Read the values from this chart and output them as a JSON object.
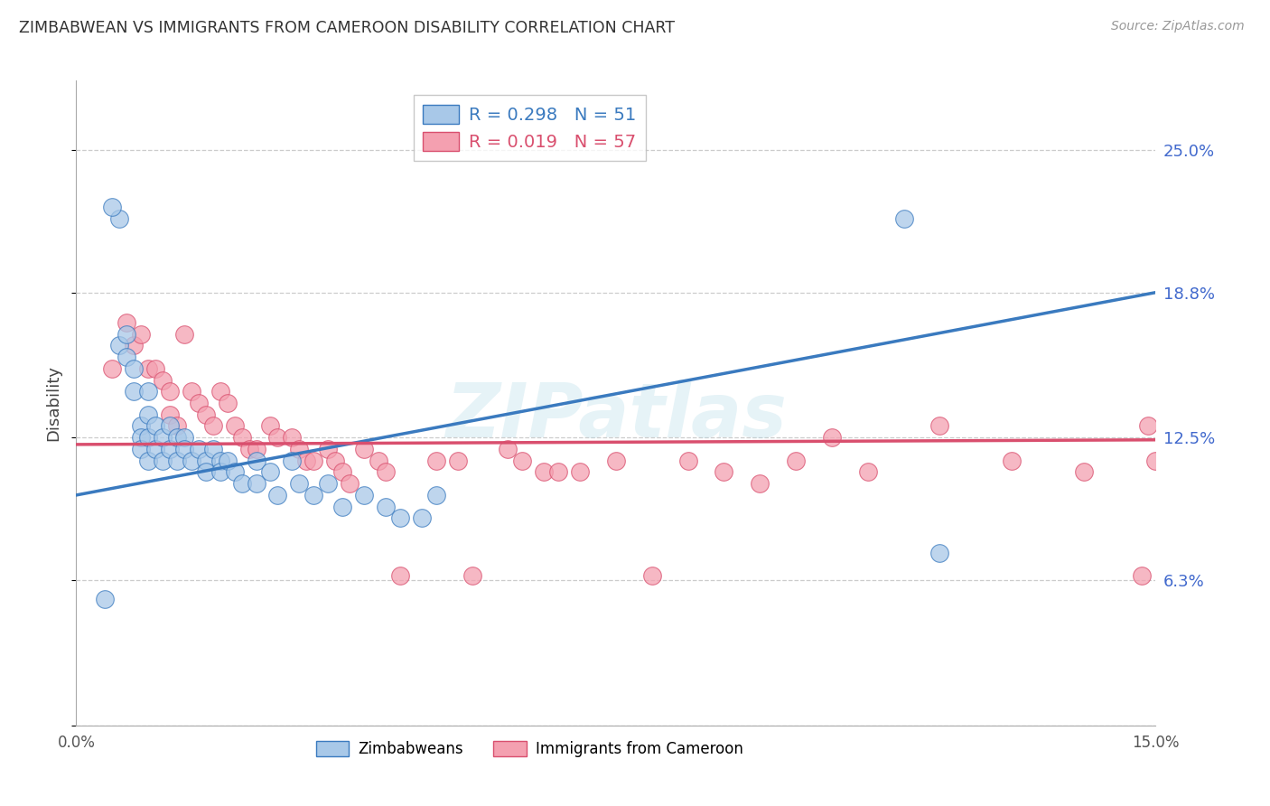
{
  "title": "ZIMBABWEAN VS IMMIGRANTS FROM CAMEROON DISABILITY CORRELATION CHART",
  "source": "Source: ZipAtlas.com",
  "ylabel": "Disability",
  "legend_label1": "Zimbabweans",
  "legend_label2": "Immigrants from Cameroon",
  "r1": 0.298,
  "n1": 51,
  "r2": 0.019,
  "n2": 57,
  "xmin": 0.0,
  "xmax": 0.15,
  "ymin": 0.0,
  "ymax": 0.28,
  "yticks": [
    0.0,
    0.063,
    0.125,
    0.188,
    0.25
  ],
  "ytick_labels": [
    "",
    "6.3%",
    "12.5%",
    "18.8%",
    "25.0%"
  ],
  "xticks": [
    0.0,
    0.05,
    0.1,
    0.15
  ],
  "xtick_labels": [
    "0.0%",
    "",
    "",
    "15.0%"
  ],
  "color1": "#a8c8e8",
  "color2": "#f4a0b0",
  "line_color1": "#3a7abf",
  "line_color2": "#d94f6e",
  "background_color": "#ffffff",
  "watermark": "ZIPatlas",
  "blue_scatter_x": [
    0.004,
    0.006,
    0.007,
    0.007,
    0.008,
    0.008,
    0.009,
    0.009,
    0.009,
    0.01,
    0.01,
    0.01,
    0.01,
    0.011,
    0.011,
    0.012,
    0.012,
    0.013,
    0.013,
    0.014,
    0.014,
    0.015,
    0.015,
    0.016,
    0.017,
    0.018,
    0.018,
    0.019,
    0.02,
    0.02,
    0.021,
    0.022,
    0.023,
    0.025,
    0.025,
    0.027,
    0.028,
    0.03,
    0.031,
    0.033,
    0.035,
    0.037,
    0.04,
    0.043,
    0.045,
    0.048,
    0.05,
    0.006,
    0.115,
    0.12,
    0.005
  ],
  "blue_scatter_y": [
    0.055,
    0.165,
    0.17,
    0.16,
    0.155,
    0.145,
    0.13,
    0.125,
    0.12,
    0.145,
    0.135,
    0.125,
    0.115,
    0.13,
    0.12,
    0.125,
    0.115,
    0.13,
    0.12,
    0.125,
    0.115,
    0.125,
    0.12,
    0.115,
    0.12,
    0.115,
    0.11,
    0.12,
    0.115,
    0.11,
    0.115,
    0.11,
    0.105,
    0.115,
    0.105,
    0.11,
    0.1,
    0.115,
    0.105,
    0.1,
    0.105,
    0.095,
    0.1,
    0.095,
    0.09,
    0.09,
    0.1,
    0.22,
    0.22,
    0.075,
    0.225
  ],
  "pink_scatter_x": [
    0.005,
    0.007,
    0.008,
    0.009,
    0.01,
    0.011,
    0.012,
    0.013,
    0.013,
    0.014,
    0.015,
    0.016,
    0.017,
    0.018,
    0.019,
    0.02,
    0.021,
    0.022,
    0.023,
    0.024,
    0.025,
    0.027,
    0.028,
    0.03,
    0.031,
    0.032,
    0.033,
    0.035,
    0.036,
    0.037,
    0.038,
    0.04,
    0.042,
    0.043,
    0.045,
    0.05,
    0.053,
    0.055,
    0.06,
    0.062,
    0.065,
    0.067,
    0.07,
    0.075,
    0.08,
    0.085,
    0.09,
    0.095,
    0.1,
    0.105,
    0.11,
    0.12,
    0.13,
    0.14,
    0.148,
    0.149,
    0.15
  ],
  "pink_scatter_y": [
    0.155,
    0.175,
    0.165,
    0.17,
    0.155,
    0.155,
    0.15,
    0.145,
    0.135,
    0.13,
    0.17,
    0.145,
    0.14,
    0.135,
    0.13,
    0.145,
    0.14,
    0.13,
    0.125,
    0.12,
    0.12,
    0.13,
    0.125,
    0.125,
    0.12,
    0.115,
    0.115,
    0.12,
    0.115,
    0.11,
    0.105,
    0.12,
    0.115,
    0.11,
    0.065,
    0.115,
    0.115,
    0.065,
    0.12,
    0.115,
    0.11,
    0.11,
    0.11,
    0.115,
    0.065,
    0.115,
    0.11,
    0.105,
    0.115,
    0.125,
    0.11,
    0.13,
    0.115,
    0.11,
    0.065,
    0.13,
    0.115
  ],
  "line1_x0": 0.0,
  "line1_y0": 0.1,
  "line1_x1": 0.15,
  "line1_y1": 0.188,
  "line2_x0": 0.0,
  "line2_y0": 0.122,
  "line2_x1": 0.15,
  "line2_y1": 0.124
}
